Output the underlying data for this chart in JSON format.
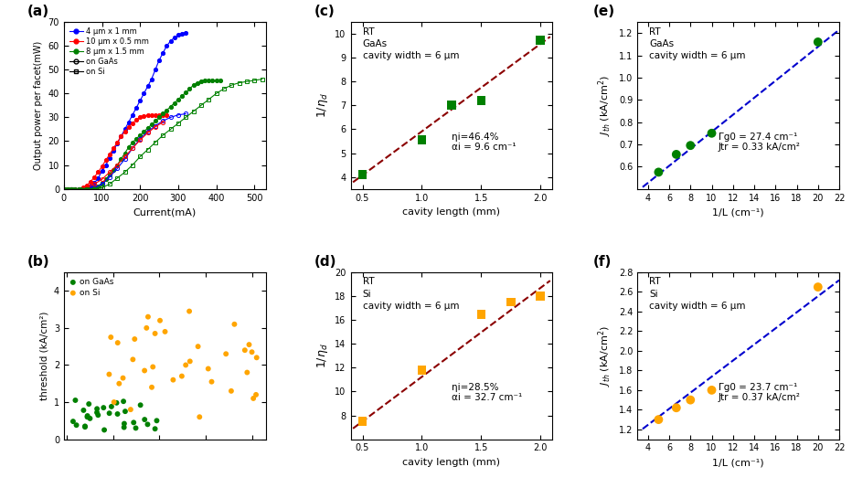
{
  "panel_a": {
    "title": "(a)",
    "xlabel": "Current(mA)",
    "ylabel": "Output power per facet(mW)",
    "xlim": [
      0,
      530
    ],
    "ylim": [
      0,
      70
    ],
    "yticks": [
      0,
      10,
      20,
      30,
      40,
      50,
      60,
      70
    ],
    "xticks": [
      0,
      100,
      200,
      300,
      400,
      500
    ],
    "series": [
      {
        "label": "4 μm x 1 mm",
        "color": "blue",
        "marker": "o",
        "fillstyle": "full",
        "on_gaas": true,
        "x": [
          0,
          10,
          20,
          30,
          40,
          50,
          60,
          70,
          80,
          90,
          100,
          110,
          120,
          130,
          140,
          150,
          160,
          170,
          180,
          190,
          200,
          210,
          220,
          230,
          240,
          250,
          260,
          270,
          280,
          290,
          300,
          310,
          320
        ],
        "y": [
          0,
          0,
          0,
          0,
          0,
          0,
          0.3,
          1.0,
          2.5,
          4.5,
          7.5,
          10,
          13,
          16,
          19,
          22,
          25,
          28,
          31,
          34,
          37,
          40,
          43,
          46,
          50,
          54,
          57,
          60,
          62,
          63.5,
          64.5,
          65,
          65.5
        ]
      },
      {
        "label": "10 μm x 0.5 mm",
        "color": "red",
        "marker": "o",
        "fillstyle": "full",
        "on_gaas": true,
        "x": [
          0,
          10,
          20,
          30,
          40,
          50,
          60,
          70,
          80,
          90,
          100,
          110,
          120,
          130,
          140,
          150,
          160,
          170,
          180,
          190,
          200,
          210,
          220,
          230,
          240,
          250,
          260,
          270
        ],
        "y": [
          0,
          0,
          0,
          0,
          0,
          0.5,
          1.5,
          3.0,
          5.0,
          7.0,
          9.5,
          12,
          14.5,
          17,
          19.5,
          22,
          24,
          26,
          27.5,
          29,
          30,
          30.5,
          31,
          31,
          31,
          31,
          31,
          31
        ]
      },
      {
        "label": "8 μm x 1.5 mm",
        "color": "green",
        "marker": "o",
        "fillstyle": "full",
        "on_gaas": true,
        "x": [
          0,
          10,
          20,
          30,
          40,
          50,
          60,
          70,
          80,
          90,
          100,
          110,
          120,
          130,
          140,
          150,
          160,
          170,
          180,
          190,
          200,
          210,
          220,
          230,
          240,
          250,
          260,
          270,
          280,
          290,
          300,
          310,
          320,
          330,
          340,
          350,
          360,
          370,
          380,
          390,
          400,
          410
        ],
        "y": [
          0,
          0,
          0,
          0,
          0,
          0,
          0,
          0,
          0.5,
          1.2,
          2.5,
          4.0,
          6.0,
          8.0,
          10.0,
          12.5,
          15.0,
          17.5,
          19.5,
          21.0,
          22.5,
          24.0,
          25.5,
          27.0,
          28.5,
          30.0,
          31.5,
          33.0,
          34.5,
          36.0,
          37.5,
          39.0,
          40.5,
          42.0,
          43.5,
          44.5,
          45.0,
          45.5,
          45.5,
          45.5,
          45.5,
          45.5
        ]
      },
      {
        "label": "4 μm x 1 mm",
        "color": "blue",
        "marker": "o",
        "fillstyle": "none",
        "on_gaas": false,
        "x": [
          0,
          20,
          40,
          60,
          80,
          100,
          120,
          140,
          160,
          180,
          200,
          220,
          240,
          260,
          280,
          300,
          320
        ],
        "y": [
          0,
          0,
          0,
          0,
          0.5,
          2.0,
          5.0,
          8.5,
          12.5,
          17.0,
          21.0,
          24.0,
          26.5,
          28.5,
          30.0,
          31.0,
          31.5
        ]
      },
      {
        "label": "10 μm x 0.5 mm",
        "color": "red",
        "marker": "o",
        "fillstyle": "none",
        "on_gaas": false,
        "x": [
          0,
          20,
          40,
          60,
          80,
          100,
          120,
          140,
          160,
          180,
          200,
          220,
          240,
          260
        ],
        "y": [
          0,
          0,
          0,
          0.5,
          2.0,
          4.0,
          7.0,
          10.0,
          13.5,
          17.0,
          20.5,
          23.5,
          26.0,
          28.0
        ]
      },
      {
        "label": "8 μm x 1.5 mm",
        "color": "green",
        "marker": "s",
        "fillstyle": "none",
        "on_gaas": false,
        "x": [
          0,
          20,
          40,
          60,
          80,
          100,
          120,
          140,
          160,
          180,
          200,
          220,
          240,
          260,
          280,
          300,
          320,
          340,
          360,
          380,
          400,
          420,
          440,
          460,
          480,
          500,
          520
        ],
        "y": [
          0,
          0,
          0,
          0,
          0,
          0.5,
          2.0,
          4.5,
          7.0,
          10.0,
          13.5,
          16.5,
          19.5,
          22.5,
          25.0,
          27.5,
          30.0,
          32.5,
          35.0,
          37.5,
          40.0,
          42.0,
          43.5,
          44.5,
          45.0,
          45.5,
          46.0
        ]
      }
    ],
    "legend_color_labels": [
      "4 μm x 1 mm",
      "10 μm x 0.5 mm",
      "8 μm x 1.5 mm"
    ],
    "legend_colors": [
      "blue",
      "red",
      "green"
    ],
    "legend_style_labels": [
      "on GaAs",
      "on Si"
    ],
    "legend_style_markers": [
      "o",
      "s"
    ]
  },
  "panel_b": {
    "title": "(b)",
    "xlabel": "",
    "ylabel": "threshold (kA/cm²)",
    "ylim": [
      0,
      4.5
    ],
    "yticks": [
      0,
      1,
      2,
      3,
      4
    ],
    "gaas_x": [
      1,
      2,
      3,
      4,
      5,
      6,
      7,
      8,
      9,
      10,
      11,
      12,
      13,
      14,
      15,
      16,
      17,
      18,
      19,
      20,
      21,
      22,
      23,
      24,
      25,
      26,
      27,
      28,
      29,
      30
    ],
    "gaas_y": [
      0.25,
      0.28,
      0.3,
      0.32,
      0.33,
      0.35,
      0.38,
      0.4,
      0.42,
      0.45,
      0.48,
      0.5,
      0.53,
      0.56,
      0.6,
      0.63,
      0.65,
      0.68,
      0.7,
      0.72,
      0.75,
      0.78,
      0.82,
      0.85,
      0.88,
      0.92,
      0.95,
      0.98,
      1.02,
      1.05
    ],
    "si_x": [
      1,
      2,
      3,
      4,
      5,
      6,
      7,
      8,
      9,
      10,
      11,
      12,
      13,
      14,
      15,
      16,
      17,
      18,
      19,
      20,
      21,
      22,
      23,
      24,
      25,
      26,
      27,
      28,
      29,
      30,
      31,
      32,
      33,
      34,
      35,
      36
    ],
    "si_y": [
      0.6,
      0.8,
      1.0,
      1.1,
      1.2,
      1.3,
      1.4,
      1.5,
      1.55,
      1.6,
      1.65,
      1.7,
      1.75,
      1.8,
      1.85,
      1.9,
      1.95,
      2.0,
      2.1,
      2.15,
      2.2,
      2.3,
      2.35,
      2.4,
      2.5,
      2.55,
      2.6,
      2.7,
      2.75,
      2.85,
      2.9,
      3.0,
      3.1,
      3.2,
      3.3,
      3.45
    ],
    "gaas_color": "#008000",
    "si_color": "#FFA500"
  },
  "panel_c": {
    "title": "(c)",
    "xlabel": "cavity length (mm)",
    "ylabel": "1/η_d",
    "xlim": [
      0.4,
      2.1
    ],
    "ylim": [
      3.5,
      10.5
    ],
    "xticks": [
      0.5,
      1.0,
      1.5,
      2.0
    ],
    "yticks": [
      4,
      5,
      6,
      7,
      8,
      9,
      10
    ],
    "text_lines": [
      "RT",
      "GaAs",
      "cavity width = 6 μm"
    ],
    "annot_eta": "ηi=46.4%",
    "annot_alpha": "αi = 9.6 cm⁻¹",
    "data_x": [
      0.5,
      1.0,
      1.25,
      1.5,
      2.0
    ],
    "data_y": [
      4.1,
      5.55,
      7.0,
      7.2,
      9.75
    ],
    "fit_x": [
      0.42,
      2.08
    ],
    "fit_y": [
      3.78,
      9.88
    ],
    "point_color": "#008000",
    "fit_color": "#8b0000",
    "marker": "s"
  },
  "panel_d": {
    "title": "(d)",
    "xlabel": "cavity length (mm)",
    "ylabel": "1/η_d",
    "xlim": [
      0.4,
      2.1
    ],
    "ylim": [
      6,
      20
    ],
    "xticks": [
      0.5,
      1.0,
      1.5,
      2.0
    ],
    "yticks": [
      8,
      10,
      12,
      14,
      16,
      18,
      20
    ],
    "text_lines": [
      "RT",
      "Si",
      "cavity width = 6 μm"
    ],
    "annot_eta": "ηi=28.5%",
    "annot_alpha": "αi = 32.7 cm⁻¹",
    "data_x": [
      0.5,
      1.0,
      1.5,
      1.75,
      2.0
    ],
    "data_y": [
      7.5,
      11.8,
      16.5,
      17.5,
      18.0
    ],
    "fit_x": [
      0.42,
      2.08
    ],
    "fit_y": [
      6.9,
      19.3
    ],
    "point_color": "#FFA500",
    "fit_color": "#8b0000",
    "marker": "s"
  },
  "panel_e": {
    "title": "(e)",
    "xlabel": "1/L (cm⁻¹)",
    "ylabel": "J_th (kA/cm²)",
    "xlim": [
      3,
      22
    ],
    "ylim": [
      0.5,
      1.25
    ],
    "xticks": [
      4,
      6,
      8,
      10,
      12,
      14,
      16,
      18,
      20,
      22
    ],
    "yticks": [
      0.6,
      0.7,
      0.8,
      0.9,
      1.0,
      1.1,
      1.2
    ],
    "text_lines": [
      "RT",
      "GaAs",
      "cavity width = 6 μm"
    ],
    "annot_gamma": "Γg0 = 27.4 cm⁻¹",
    "annot_jtr": "Jtr = 0.33 kA/cm²",
    "data_x": [
      5.0,
      6.67,
      8.0,
      10.0,
      20.0
    ],
    "data_y": [
      0.575,
      0.655,
      0.695,
      0.75,
      1.16
    ],
    "fit_x": [
      3.5,
      22
    ],
    "fit_y": [
      0.508,
      1.215
    ],
    "point_color": "#008000",
    "fit_color": "#0000CD",
    "marker": "o"
  },
  "panel_f": {
    "title": "(f)",
    "xlabel": "1/L (cm⁻¹)",
    "ylabel": "J_th (kA/cm²)",
    "xlim": [
      3,
      22
    ],
    "ylim": [
      1.1,
      2.8
    ],
    "xticks": [
      4,
      6,
      8,
      10,
      12,
      14,
      16,
      18,
      20,
      22
    ],
    "yticks": [
      1.2,
      1.4,
      1.6,
      1.8,
      2.0,
      2.2,
      2.4,
      2.6,
      2.8
    ],
    "text_lines": [
      "RT",
      "Si",
      "cavity width = 6 μm"
    ],
    "annot_gamma": "Γg0 = 23.7 cm⁻¹",
    "annot_jtr": "Jtr = 0.37 kA/cm²",
    "data_x": [
      5.0,
      6.67,
      8.0,
      10.0,
      20.0
    ],
    "data_y": [
      1.3,
      1.42,
      1.5,
      1.6,
      2.65
    ],
    "fit_x": [
      3.5,
      22
    ],
    "fit_y": [
      1.205,
      2.72
    ],
    "point_color": "#FFA500",
    "fit_color": "#0000CD",
    "marker": "o"
  }
}
